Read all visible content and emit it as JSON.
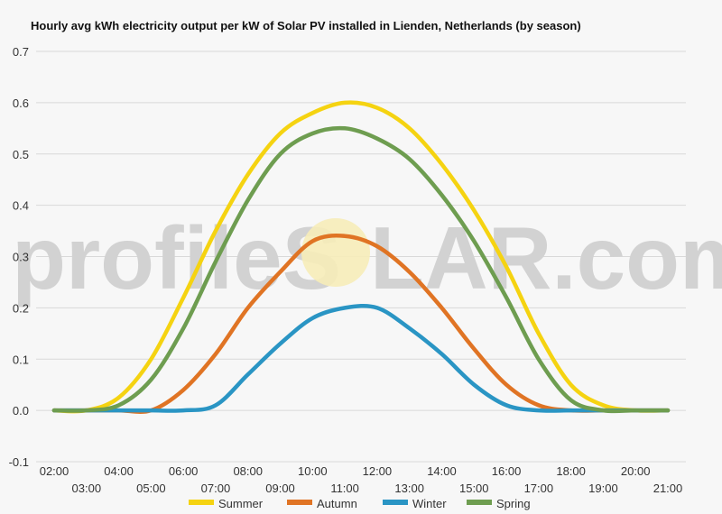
{
  "chart_data": {
    "type": "line",
    "title": "Hourly avg kWh electricity output per kW of Solar PV installed in Lienden, Netherlands (by season)",
    "xlabel": "",
    "ylabel": "",
    "x": [
      "02:00",
      "03:00",
      "04:00",
      "05:00",
      "06:00",
      "07:00",
      "08:00",
      "09:00",
      "10:00",
      "11:00",
      "12:00",
      "13:00",
      "14:00",
      "15:00",
      "16:00",
      "17:00",
      "18:00",
      "19:00",
      "20:00",
      "21:00"
    ],
    "ylim": [
      -0.1,
      0.7
    ],
    "yticks": [
      "-0.1",
      "0.0",
      "0.1",
      "0.2",
      "0.3",
      "0.4",
      "0.5",
      "0.6",
      "0.7"
    ],
    "grid": true,
    "legend_position": "bottom",
    "watermark": {
      "left": "profileS",
      "right": "LAR.com"
    },
    "series": [
      {
        "name": "Summer",
        "color": "#f5d311",
        "values": [
          0,
          0,
          0.025,
          0.1,
          0.22,
          0.35,
          0.46,
          0.54,
          0.58,
          0.6,
          0.59,
          0.55,
          0.48,
          0.39,
          0.28,
          0.15,
          0.05,
          0.01,
          0,
          0
        ]
      },
      {
        "name": "Autumn",
        "color": "#e07424",
        "values": [
          0,
          0,
          0,
          0,
          0.04,
          0.11,
          0.2,
          0.27,
          0.33,
          0.34,
          0.32,
          0.27,
          0.2,
          0.12,
          0.05,
          0.01,
          0,
          0,
          0,
          0
        ]
      },
      {
        "name": "Winter",
        "color": "#2a95c4",
        "values": [
          0,
          0,
          0,
          0,
          0,
          0.01,
          0.07,
          0.13,
          0.18,
          0.2,
          0.2,
          0.16,
          0.11,
          0.05,
          0.01,
          0,
          0,
          0,
          0,
          0
        ]
      },
      {
        "name": "Spring",
        "color": "#6e9d50",
        "values": [
          0,
          0,
          0.01,
          0.06,
          0.16,
          0.29,
          0.41,
          0.5,
          0.54,
          0.55,
          0.53,
          0.49,
          0.42,
          0.33,
          0.22,
          0.1,
          0.02,
          0,
          0,
          0
        ]
      }
    ]
  }
}
